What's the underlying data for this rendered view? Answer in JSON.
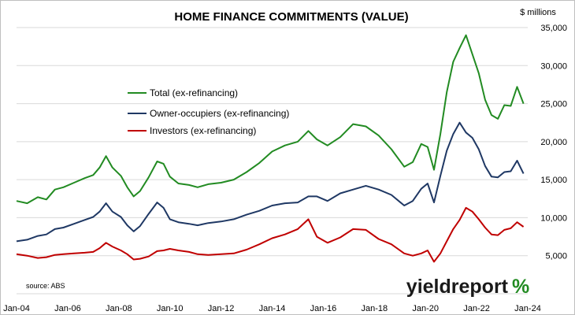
{
  "chart_data": {
    "type": "line",
    "title": "HOME FINANCE COMMITMENTS (VALUE)",
    "unit_label": "$ millions",
    "source": "source: ABS",
    "logo": {
      "text": "yieldreport",
      "symbol": "%",
      "colors": [
        "#228b22",
        "#c00000"
      ]
    },
    "grid": true,
    "legend_position": "left-middle",
    "x_range": [
      "2004-01",
      "2024-01"
    ],
    "ylim": [
      0,
      35000
    ],
    "y_ticks": [
      0,
      5000,
      10000,
      15000,
      20000,
      25000,
      30000,
      35000
    ],
    "y_tick_labels": [
      "",
      "5,000",
      "10,000",
      "15,000",
      "20,000",
      "25,000",
      "30,000",
      "35,000"
    ],
    "x_tick_labels": [
      "Jan-04",
      "Jan-06",
      "Jan-08",
      "Jan-10",
      "Jan-12",
      "Jan-14",
      "Jan-16",
      "Jan-18",
      "Jan-20",
      "Jan-22",
      "Jan-24"
    ],
    "x_tick_dates": [
      "2004-01",
      "2006-01",
      "2008-01",
      "2010-01",
      "2012-01",
      "2014-01",
      "2016-01",
      "2018-01",
      "2020-01",
      "2022-01",
      "2024-01"
    ],
    "series": [
      {
        "name": "Total (ex-refinancing)",
        "color": "#228b22",
        "points": [
          [
            "2004-01",
            12200
          ],
          [
            "2004-06",
            11900
          ],
          [
            "2004-11",
            12700
          ],
          [
            "2005-03",
            12400
          ],
          [
            "2005-07",
            13700
          ],
          [
            "2005-11",
            14000
          ],
          [
            "2006-04",
            14600
          ],
          [
            "2006-09",
            15200
          ],
          [
            "2007-01",
            15600
          ],
          [
            "2007-04",
            16600
          ],
          [
            "2007-07",
            18100
          ],
          [
            "2007-10",
            16600
          ],
          [
            "2008-02",
            15500
          ],
          [
            "2008-05",
            14000
          ],
          [
            "2008-08",
            12800
          ],
          [
            "2008-11",
            13500
          ],
          [
            "2009-03",
            15300
          ],
          [
            "2009-07",
            17400
          ],
          [
            "2009-10",
            17100
          ],
          [
            "2010-01",
            15400
          ],
          [
            "2010-05",
            14500
          ],
          [
            "2010-10",
            14300
          ],
          [
            "2011-02",
            14000
          ],
          [
            "2011-07",
            14400
          ],
          [
            "2012-01",
            14600
          ],
          [
            "2012-07",
            15000
          ],
          [
            "2013-01",
            16000
          ],
          [
            "2013-07",
            17200
          ],
          [
            "2014-01",
            18700
          ],
          [
            "2014-07",
            19500
          ],
          [
            "2015-01",
            20000
          ],
          [
            "2015-06",
            21400
          ],
          [
            "2015-10",
            20300
          ],
          [
            "2016-03",
            19500
          ],
          [
            "2016-09",
            20600
          ],
          [
            "2017-03",
            22300
          ],
          [
            "2017-09",
            22000
          ],
          [
            "2018-03",
            20800
          ],
          [
            "2018-09",
            19000
          ],
          [
            "2019-03",
            16700
          ],
          [
            "2019-07",
            17300
          ],
          [
            "2019-11",
            19700
          ],
          [
            "2020-02",
            19300
          ],
          [
            "2020-05",
            16300
          ],
          [
            "2020-08",
            21000
          ],
          [
            "2020-11",
            26500
          ],
          [
            "2021-02",
            30500
          ],
          [
            "2021-05",
            32300
          ],
          [
            "2021-08",
            34000
          ],
          [
            "2021-11",
            31500
          ],
          [
            "2022-02",
            29000
          ],
          [
            "2022-05",
            25500
          ],
          [
            "2022-08",
            23500
          ],
          [
            "2022-11",
            23000
          ],
          [
            "2023-02",
            24800
          ],
          [
            "2023-05",
            24700
          ],
          [
            "2023-08",
            27200
          ],
          [
            "2023-11",
            25000
          ]
        ]
      },
      {
        "name": "Owner-occupiers (ex-refinancing)",
        "color": "#1f3864",
        "points": [
          [
            "2004-01",
            6900
          ],
          [
            "2004-06",
            7100
          ],
          [
            "2004-11",
            7600
          ],
          [
            "2005-03",
            7800
          ],
          [
            "2005-07",
            8500
          ],
          [
            "2005-11",
            8700
          ],
          [
            "2006-04",
            9200
          ],
          [
            "2006-09",
            9700
          ],
          [
            "2007-01",
            10100
          ],
          [
            "2007-04",
            10800
          ],
          [
            "2007-07",
            11900
          ],
          [
            "2007-10",
            10800
          ],
          [
            "2008-02",
            10100
          ],
          [
            "2008-05",
            9000
          ],
          [
            "2008-08",
            8200
          ],
          [
            "2008-11",
            8900
          ],
          [
            "2009-03",
            10500
          ],
          [
            "2009-07",
            12000
          ],
          [
            "2009-10",
            11300
          ],
          [
            "2010-01",
            9800
          ],
          [
            "2010-05",
            9400
          ],
          [
            "2010-10",
            9200
          ],
          [
            "2011-02",
            9000
          ],
          [
            "2011-07",
            9300
          ],
          [
            "2012-01",
            9500
          ],
          [
            "2012-07",
            9800
          ],
          [
            "2013-01",
            10400
          ],
          [
            "2013-07",
            10900
          ],
          [
            "2014-01",
            11600
          ],
          [
            "2014-07",
            11900
          ],
          [
            "2015-01",
            12000
          ],
          [
            "2015-06",
            12800
          ],
          [
            "2015-10",
            12800
          ],
          [
            "2016-03",
            12200
          ],
          [
            "2016-09",
            13200
          ],
          [
            "2017-03",
            13700
          ],
          [
            "2017-09",
            14200
          ],
          [
            "2018-03",
            13700
          ],
          [
            "2018-09",
            13000
          ],
          [
            "2019-03",
            11600
          ],
          [
            "2019-07",
            12200
          ],
          [
            "2019-11",
            13800
          ],
          [
            "2020-02",
            14500
          ],
          [
            "2020-05",
            12000
          ],
          [
            "2020-08",
            15500
          ],
          [
            "2020-11",
            18800
          ],
          [
            "2021-02",
            21000
          ],
          [
            "2021-05",
            22500
          ],
          [
            "2021-08",
            21200
          ],
          [
            "2021-11",
            20500
          ],
          [
            "2022-02",
            19000
          ],
          [
            "2022-05",
            16800
          ],
          [
            "2022-08",
            15400
          ],
          [
            "2022-11",
            15300
          ],
          [
            "2023-02",
            16000
          ],
          [
            "2023-05",
            16100
          ],
          [
            "2023-08",
            17500
          ],
          [
            "2023-11",
            15800
          ]
        ]
      },
      {
        "name": "Investors (ex-refinancing)",
        "color": "#c00000",
        "points": [
          [
            "2004-01",
            5200
          ],
          [
            "2004-06",
            5000
          ],
          [
            "2004-11",
            4700
          ],
          [
            "2005-03",
            4800
          ],
          [
            "2005-07",
            5100
          ],
          [
            "2005-11",
            5200
          ],
          [
            "2006-04",
            5300
          ],
          [
            "2006-09",
            5400
          ],
          [
            "2007-01",
            5500
          ],
          [
            "2007-04",
            6000
          ],
          [
            "2007-07",
            6700
          ],
          [
            "2007-10",
            6200
          ],
          [
            "2008-02",
            5700
          ],
          [
            "2008-05",
            5200
          ],
          [
            "2008-08",
            4500
          ],
          [
            "2008-11",
            4600
          ],
          [
            "2009-03",
            4900
          ],
          [
            "2009-07",
            5600
          ],
          [
            "2009-10",
            5700
          ],
          [
            "2010-01",
            5900
          ],
          [
            "2010-05",
            5700
          ],
          [
            "2010-10",
            5500
          ],
          [
            "2011-02",
            5200
          ],
          [
            "2011-07",
            5100
          ],
          [
            "2012-01",
            5200
          ],
          [
            "2012-07",
            5300
          ],
          [
            "2013-01",
            5800
          ],
          [
            "2013-07",
            6500
          ],
          [
            "2014-01",
            7300
          ],
          [
            "2014-07",
            7800
          ],
          [
            "2015-01",
            8500
          ],
          [
            "2015-06",
            9800
          ],
          [
            "2015-10",
            7500
          ],
          [
            "2016-03",
            6700
          ],
          [
            "2016-09",
            7400
          ],
          [
            "2017-03",
            8500
          ],
          [
            "2017-09",
            8400
          ],
          [
            "2018-03",
            7200
          ],
          [
            "2018-09",
            6500
          ],
          [
            "2019-03",
            5300
          ],
          [
            "2019-07",
            5000
          ],
          [
            "2019-11",
            5300
          ],
          [
            "2020-02",
            5700
          ],
          [
            "2020-05",
            4200
          ],
          [
            "2020-08",
            5300
          ],
          [
            "2020-11",
            6900
          ],
          [
            "2021-02",
            8500
          ],
          [
            "2021-05",
            9700
          ],
          [
            "2021-08",
            11300
          ],
          [
            "2021-11",
            10800
          ],
          [
            "2022-02",
            9800
          ],
          [
            "2022-05",
            8700
          ],
          [
            "2022-08",
            7800
          ],
          [
            "2022-11",
            7700
          ],
          [
            "2023-02",
            8400
          ],
          [
            "2023-05",
            8600
          ],
          [
            "2023-08",
            9400
          ],
          [
            "2023-11",
            8800
          ]
        ]
      }
    ]
  }
}
